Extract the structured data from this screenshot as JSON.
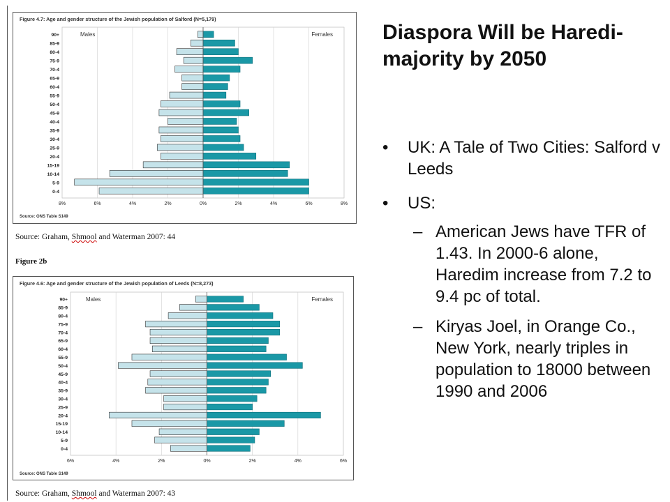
{
  "slide": {
    "title": "Diaspora Will be Haredi-majority by 2050",
    "bullets": [
      {
        "text": "UK: A Tale of Two Cities: Salford v Leeds"
      },
      {
        "text": "US:"
      }
    ],
    "sub_bullets": [
      {
        "dash": "–",
        "text": "American Jews have TFR of 1.43. In 2000-6 alone, Haredim increase from 7.2 to 9.4 pc of total."
      },
      {
        "dash": "–",
        "text": "Kiryas Joel, in Orange Co., New York, nearly triples in population to 18000 between 1990 and 2006"
      }
    ]
  },
  "figure_2b_label": "Figure 2b",
  "source_salford": {
    "prefix": "Source: Graham, ",
    "name": "Shmool",
    "suffix": " and Waterman 2007: 44"
  },
  "source_leeds": {
    "prefix": "Source: Graham, ",
    "name": "Shmool",
    "suffix": " and Waterman 2007: 43"
  },
  "colors": {
    "male": "#c5e3ea",
    "female": "#1a98a6",
    "male_stroke": "#333333",
    "female_stroke": "#0c6e7a"
  },
  "chart_data": [
    {
      "type": "bar",
      "orientation": "population-pyramid",
      "title": "Figure 4.7: Age and gender structure of the Jewish population of Salford (N=5,179)",
      "left_label": "Males",
      "right_label": "Females",
      "source_note": "Source: ONS Table S149",
      "categories": [
        "90+",
        "85-9",
        "80-4",
        "75-9",
        "70-4",
        "65-9",
        "60-4",
        "55-9",
        "50-4",
        "45-9",
        "40-4",
        "35-9",
        "30-4",
        "25-9",
        "20-4",
        "15-19",
        "10-14",
        "5-9",
        "0-4"
      ],
      "x_ticks": [
        "8%",
        "6%",
        "4%",
        "2%",
        "0%",
        "2%",
        "4%",
        "6%",
        "8%"
      ],
      "xlim": [
        -8,
        8
      ],
      "series": [
        {
          "name": "Males",
          "values": [
            0.3,
            0.7,
            1.5,
            1.1,
            1.6,
            1.2,
            1.2,
            1.9,
            2.4,
            2.5,
            2.0,
            2.5,
            2.4,
            2.6,
            2.4,
            3.4,
            5.3,
            7.3,
            5.9
          ]
        },
        {
          "name": "Females",
          "values": [
            0.6,
            1.8,
            2.0,
            2.8,
            2.1,
            1.5,
            1.4,
            1.3,
            2.1,
            2.6,
            1.9,
            2.0,
            2.1,
            2.3,
            3.0,
            4.9,
            4.8,
            6.0,
            6.0
          ]
        }
      ]
    },
    {
      "type": "bar",
      "orientation": "population-pyramid",
      "title": "Figure 4.6: Age and gender structure of the Jewish population of Leeds (N=8,273)",
      "left_label": "Males",
      "right_label": "Females",
      "source_note": "Source: ONS Table S149",
      "categories": [
        "90+",
        "85-9",
        "80-4",
        "75-9",
        "70-4",
        "65-9",
        "60-4",
        "55-9",
        "50-4",
        "45-9",
        "40-4",
        "35-9",
        "30-4",
        "25-9",
        "20-4",
        "15-19",
        "10-14",
        "5-9",
        "0-4"
      ],
      "x_ticks": [
        "6%",
        "4%",
        "2%",
        "0%",
        "2%",
        "4%",
        "6%"
      ],
      "xlim": [
        -6,
        6
      ],
      "series": [
        {
          "name": "Males",
          "values": [
            0.5,
            1.2,
            1.7,
            2.7,
            2.5,
            2.5,
            2.4,
            3.3,
            3.9,
            2.5,
            2.6,
            2.7,
            1.9,
            1.9,
            4.3,
            3.3,
            2.1,
            2.3,
            1.6
          ]
        },
        {
          "name": "Females",
          "values": [
            1.6,
            2.3,
            2.9,
            3.2,
            3.2,
            2.7,
            2.6,
            3.5,
            4.2,
            2.8,
            2.7,
            2.6,
            2.2,
            2.0,
            5.0,
            3.4,
            2.3,
            2.1,
            1.9
          ]
        }
      ]
    }
  ]
}
